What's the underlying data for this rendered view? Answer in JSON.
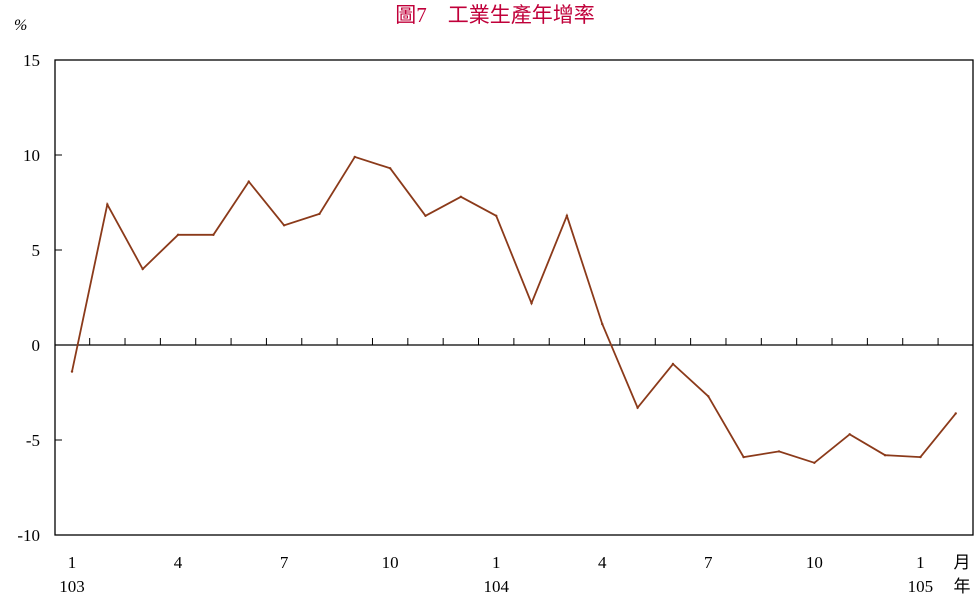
{
  "chart_data": {
    "type": "line",
    "title": "圖7　工業生產年增率",
    "unit_label": "%",
    "ylim": [
      -10,
      15
    ],
    "y_ticks": [
      "15",
      "10",
      "5",
      "0",
      "-5",
      "-10"
    ],
    "x_month_labels": [
      "1",
      "4",
      "7",
      "10",
      "1",
      "4",
      "7",
      "10",
      "1"
    ],
    "x_month_label_index": [
      0,
      3,
      6,
      9,
      12,
      15,
      18,
      21,
      24
    ],
    "x_year_labels": [
      "103",
      "104",
      "105"
    ],
    "x_year_label_index": [
      0,
      12,
      24
    ],
    "x_axis_unit_month": "月",
    "x_axis_unit_year": "年",
    "grid": false,
    "line_color": "#8B3A1A",
    "categories": [
      "103/1",
      "103/2",
      "103/3",
      "103/4",
      "103/5",
      "103/6",
      "103/7",
      "103/8",
      "103/9",
      "103/10",
      "103/11",
      "103/12",
      "104/1",
      "104/2",
      "104/3",
      "104/4",
      "104/5",
      "104/6",
      "104/7",
      "104/8",
      "104/9",
      "104/10",
      "104/11",
      "104/12",
      "105/1",
      "105/2"
    ],
    "series": [
      {
        "values": [
          -1.4,
          7.4,
          4.0,
          5.8,
          5.8,
          8.6,
          6.3,
          6.9,
          9.9,
          9.3,
          6.8,
          7.8,
          6.8,
          2.2,
          6.8,
          1.1,
          -3.3,
          -1.0,
          -2.7,
          -5.9,
          -5.6,
          -6.2,
          -4.7,
          -5.8,
          -5.9,
          -3.6
        ]
      }
    ]
  }
}
